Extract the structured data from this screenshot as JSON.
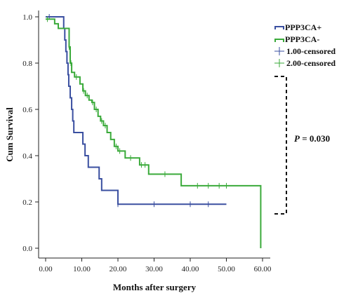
{
  "chart_data": {
    "type": "line",
    "chart_kind": "kaplan-meier",
    "xlabel": "Months after surgery",
    "ylabel": "Cum Survival",
    "xlim": [
      0,
      60
    ],
    "ylim": [
      0,
      1
    ],
    "x_ticks": [
      "0.00",
      "10.00",
      "20.00",
      "30.00",
      "40.00",
      "50.00",
      "60.00"
    ],
    "x_tick_values": [
      0,
      10,
      20,
      30,
      40,
      50,
      60
    ],
    "y_ticks": [
      "0.0",
      "0.2",
      "0.4",
      "0.6",
      "0.8",
      "1.0"
    ],
    "y_tick_values": [
      0,
      0.2,
      0.4,
      0.6,
      0.8,
      1.0
    ],
    "grid": false,
    "legend_position": "top-right",
    "legend": [
      {
        "label": "PPP3CA+",
        "kind": "line",
        "color": "#3a4fa0"
      },
      {
        "label": "PPP3CA-",
        "kind": "line",
        "color": "#3aaa3a"
      },
      {
        "label": "1.00-censored",
        "kind": "censor",
        "color": "#3a4fa0"
      },
      {
        "label": "2.00-censored",
        "kind": "censor",
        "color": "#3aaa3a"
      }
    ],
    "annotation": {
      "p_label": "P",
      "p_rest": " = 0.030"
    },
    "series": [
      {
        "name": "PPP3CA+",
        "color": "#3a4fa0",
        "steps": [
          [
            0,
            1.0
          ],
          [
            5.0,
            0.95
          ],
          [
            5.3,
            0.9
          ],
          [
            5.6,
            0.85
          ],
          [
            5.9,
            0.8
          ],
          [
            6.2,
            0.75
          ],
          [
            6.4,
            0.7
          ],
          [
            6.8,
            0.65
          ],
          [
            7.2,
            0.6
          ],
          [
            7.5,
            0.55
          ],
          [
            7.8,
            0.5
          ],
          [
            10.3,
            0.45
          ],
          [
            10.9,
            0.4
          ],
          [
            11.8,
            0.35
          ],
          [
            14.8,
            0.3
          ],
          [
            15.5,
            0.25
          ],
          [
            20.0,
            0.19
          ],
          [
            50.0,
            0.19
          ]
        ],
        "censored": [
          [
            1.0,
            1.0
          ],
          [
            20.0,
            0.19
          ],
          [
            30.0,
            0.19
          ],
          [
            40.0,
            0.19
          ],
          [
            45.0,
            0.19
          ]
        ]
      },
      {
        "name": "PPP3CA-",
        "color": "#3aaa3a",
        "steps": [
          [
            0,
            0.99
          ],
          [
            2.5,
            0.97
          ],
          [
            3.5,
            0.95
          ],
          [
            6.5,
            0.87
          ],
          [
            6.8,
            0.8
          ],
          [
            7.2,
            0.76
          ],
          [
            8.0,
            0.74
          ],
          [
            9.5,
            0.71
          ],
          [
            10.3,
            0.68
          ],
          [
            11.0,
            0.66
          ],
          [
            12.0,
            0.64
          ],
          [
            12.8,
            0.63
          ],
          [
            13.5,
            0.6
          ],
          [
            14.5,
            0.57
          ],
          [
            15.2,
            0.55
          ],
          [
            16.0,
            0.53
          ],
          [
            17.0,
            0.5
          ],
          [
            18.0,
            0.47
          ],
          [
            19.0,
            0.44
          ],
          [
            20.0,
            0.42
          ],
          [
            22.0,
            0.39
          ],
          [
            26.0,
            0.36
          ],
          [
            28.5,
            0.32
          ],
          [
            37.5,
            0.27
          ],
          [
            59.5,
            0.0
          ]
        ],
        "censored": [
          [
            0.5,
            0.99
          ],
          [
            6.5,
            0.87
          ],
          [
            7.0,
            0.8
          ],
          [
            8.5,
            0.74
          ],
          [
            10.5,
            0.68
          ],
          [
            11.5,
            0.66
          ],
          [
            13.0,
            0.63
          ],
          [
            14.0,
            0.6
          ],
          [
            15.5,
            0.55
          ],
          [
            16.5,
            0.53
          ],
          [
            19.5,
            0.44
          ],
          [
            20.5,
            0.42
          ],
          [
            23.5,
            0.39
          ],
          [
            26.5,
            0.36
          ],
          [
            27.5,
            0.36
          ],
          [
            33.0,
            0.32
          ],
          [
            42.0,
            0.27
          ],
          [
            45.0,
            0.27
          ],
          [
            48.0,
            0.27
          ],
          [
            50.0,
            0.27
          ]
        ]
      }
    ]
  }
}
